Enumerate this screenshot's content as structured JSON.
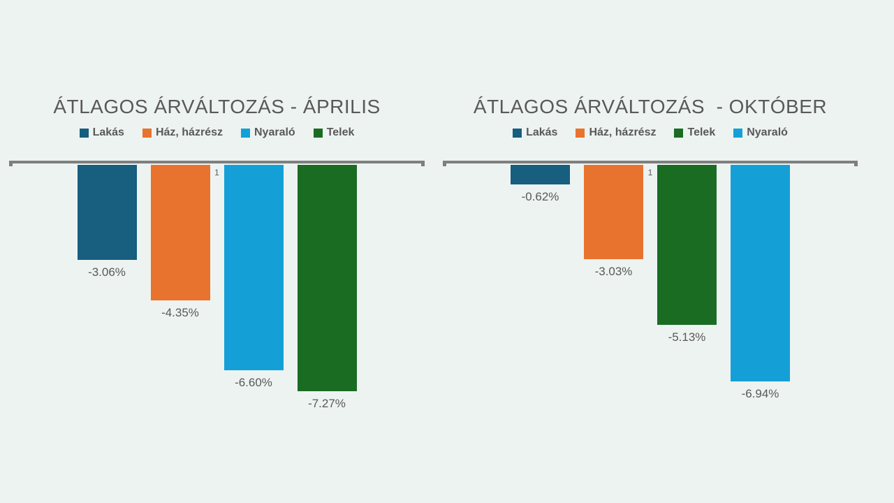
{
  "page": {
    "background_color": "#EDF3F1",
    "axis_color": "#7F7F7F",
    "text_color": "#595959"
  },
  "chart_data": [
    {
      "type": "bar",
      "title": "ÁTLAGOS ÁRVÁLTOZÁS - ÁPRILIS",
      "categories": [
        "1"
      ],
      "legend_position": "top",
      "grid": false,
      "baseline": 0,
      "ylim": [
        -8,
        0
      ],
      "series": [
        {
          "name": "Lakás",
          "value": -3.06,
          "label": "-3.06%",
          "color": "#175E7F"
        },
        {
          "name": "Ház, házrész",
          "value": -4.35,
          "label": "-4.35%",
          "color": "#E8732E"
        },
        {
          "name": "Nyaraló",
          "value": -6.6,
          "label": "-6.60%",
          "color": "#14A0D6"
        },
        {
          "name": "Telek",
          "value": -7.27,
          "label": "-7.27%",
          "color": "#1B6C23"
        }
      ]
    },
    {
      "type": "bar",
      "title": "ÁTLAGOS ÁRVÁLTOZÁS  - OKTÓBER",
      "categories": [
        "1"
      ],
      "legend_position": "top",
      "grid": false,
      "baseline": 0,
      "ylim": [
        -8,
        0
      ],
      "series": [
        {
          "name": "Lakás",
          "value": -0.62,
          "label": "-0.62%",
          "color": "#175E7F"
        },
        {
          "name": "Ház, házrész",
          "value": -3.03,
          "label": "-3.03%",
          "color": "#E8732E"
        },
        {
          "name": "Telek",
          "value": -5.13,
          "label": "-5.13%",
          "color": "#1B6C23"
        },
        {
          "name": "Nyaraló",
          "value": -6.94,
          "label": "-6.94%",
          "color": "#14A0D6"
        }
      ]
    }
  ]
}
